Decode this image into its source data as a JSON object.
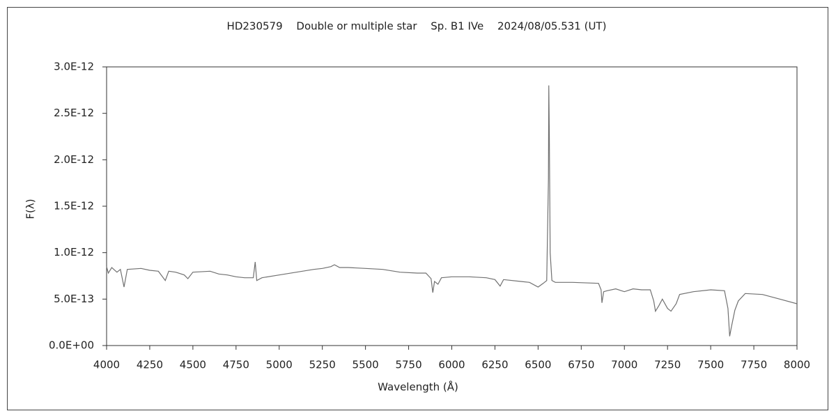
{
  "chart_data": {
    "type": "line",
    "title": "HD230579　 Double or multiple star　 Sp. B1 IVe　 2024/08/05.531 (UT)",
    "x_label": "Wavelength (Å)",
    "y_label": "F(λ)",
    "color": "#707070",
    "grid": false,
    "xlim": [
      4000,
      8000
    ],
    "xticks": [
      4000,
      4250,
      4500,
      4750,
      5000,
      5250,
      5500,
      5750,
      6000,
      6250,
      6500,
      6750,
      7000,
      7250,
      7500,
      7750,
      8000
    ],
    "ylim": [
      0,
      3e-12
    ],
    "yticks": [
      {
        "value": 0,
        "label": "0.0E+00"
      },
      {
        "value": 5e-13,
        "label": "5.0E-13"
      },
      {
        "value": 1e-12,
        "label": "1.0E-12"
      },
      {
        "value": 1.5e-12,
        "label": "1.5E-12"
      },
      {
        "value": 2e-12,
        "label": "2.0E-12"
      },
      {
        "value": 2.5e-12,
        "label": "2.5E-12"
      },
      {
        "value": 3e-12,
        "label": "3.0E-12"
      }
    ],
    "x": [
      4000,
      4010,
      4030,
      4060,
      4080,
      4101,
      4120,
      4200,
      4250,
      4300,
      4340,
      4360,
      4400,
      4450,
      4471,
      4500,
      4600,
      4650,
      4700,
      4750,
      4800,
      4850,
      4861,
      4870,
      4900,
      5000,
      5100,
      5200,
      5250,
      5300,
      5320,
      5350,
      5400,
      5500,
      5600,
      5700,
      5800,
      5850,
      5880,
      5890,
      5900,
      5920,
      5940,
      6000,
      6100,
      6200,
      6250,
      6280,
      6300,
      6400,
      6450,
      6500,
      6530,
      6550,
      6560,
      6562,
      6565,
      6570,
      6580,
      6600,
      6700,
      6850,
      6865,
      6870,
      6880,
      6900,
      6950,
      7000,
      7050,
      7100,
      7150,
      7170,
      7180,
      7200,
      7220,
      7250,
      7270,
      7300,
      7320,
      7400,
      7500,
      7580,
      7600,
      7610,
      7620,
      7640,
      7660,
      7700,
      7800,
      7900,
      8000
    ],
    "values": [
      8.5e-13,
      7.8e-13,
      8.4e-13,
      7.9e-13,
      8.2e-13,
      6.3e-13,
      8.2e-13,
      8.3e-13,
      8.1e-13,
      8e-13,
      7e-13,
      8e-13,
      7.9e-13,
      7.6e-13,
      7.2e-13,
      7.9e-13,
      8e-13,
      7.7e-13,
      7.6e-13,
      7.4e-13,
      7.3e-13,
      7.3e-13,
      9e-13,
      7e-13,
      7.3e-13,
      7.6e-13,
      7.9e-13,
      8.2e-13,
      8.3e-13,
      8.5e-13,
      8.7e-13,
      8.4e-13,
      8.4e-13,
      8.3e-13,
      8.2e-13,
      7.9e-13,
      7.8e-13,
      7.8e-13,
      7.2e-13,
      5.7e-13,
      6.9e-13,
      6.6e-13,
      7.3e-13,
      7.4e-13,
      7.4e-13,
      7.3e-13,
      7.1e-13,
      6.4e-13,
      7.1e-13,
      6.9e-13,
      6.8e-13,
      6.3e-13,
      6.7e-13,
      7e-13,
      1.8e-12,
      2.8e-12,
      2.3e-12,
      1e-12,
      7e-13,
      6.8e-13,
      6.8e-13,
      6.7e-13,
      6e-13,
      4.6e-13,
      5.8e-13,
      5.9e-13,
      6.1e-13,
      5.8e-13,
      6.1e-13,
      6e-13,
      6e-13,
      4.8e-13,
      3.7e-13,
      4.3e-13,
      5e-13,
      4e-13,
      3.7e-13,
      4.5e-13,
      5.5e-13,
      5.8e-13,
      6e-13,
      5.9e-13,
      4e-13,
      1e-13,
      2e-13,
      3.8e-13,
      4.8e-13,
      5.6e-13,
      5.5e-13,
      5e-13,
      4.5e-13
    ]
  }
}
